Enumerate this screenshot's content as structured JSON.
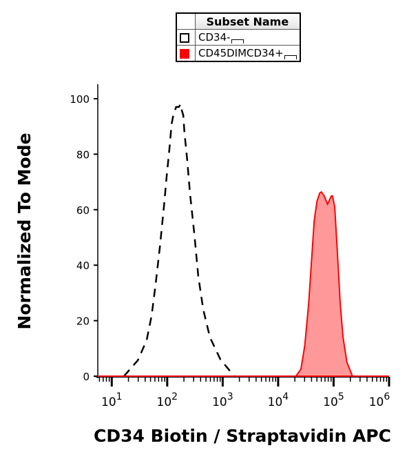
{
  "chart_data": {
    "type": "line",
    "title": "",
    "xlabel": "CD34 Biotin / Straptavidin APC",
    "ylabel": "Normalized To Mode",
    "x_scale": "log",
    "xlim": [
      5.6,
      1000000
    ],
    "ylim": [
      0,
      105
    ],
    "x_tick_labels": [
      {
        "value": 10,
        "base": "10",
        "exp": "1"
      },
      {
        "value": 100,
        "base": "10",
        "exp": "2"
      },
      {
        "value": 1000,
        "base": "10",
        "exp": "3"
      },
      {
        "value": 10000,
        "base": "10",
        "exp": "4"
      },
      {
        "value": 100000,
        "base": "10",
        "exp": "5"
      },
      {
        "value": 1000000,
        "base": "10",
        "exp": "6"
      }
    ],
    "y_ticks": [
      0,
      20,
      40,
      60,
      80,
      100
    ],
    "grid": false,
    "legend": {
      "placement": "top-center",
      "header": "Subset Name",
      "entries": [
        "CD34-",
        "CD45DIMCD34+"
      ]
    },
    "series": [
      {
        "name": "CD34-",
        "color": "#000000",
        "style": "dashed",
        "fill": "none",
        "log10_x": [
          1.22,
          1.47,
          1.63,
          1.72,
          1.79,
          1.87,
          1.94,
          1.99,
          2.04,
          2.08,
          2.11,
          2.16,
          2.21,
          2.24,
          2.26,
          2.29,
          2.31,
          2.36,
          2.41,
          2.49,
          2.56,
          2.65,
          2.77,
          2.96,
          3.21
        ],
        "y": [
          0,
          5.7,
          13,
          22,
          33,
          47,
          61,
          72,
          82,
          91,
          94,
          97,
          97,
          98,
          96,
          94,
          88,
          78,
          66,
          51,
          36,
          24,
          14,
          6,
          0
        ]
      },
      {
        "name": "CD45DIMCD34+",
        "color": "#ff0000",
        "style": "solid",
        "fill": "#ff9999",
        "log10_x": [
          4.32,
          4.41,
          4.48,
          4.55,
          4.6,
          4.65,
          4.7,
          4.75,
          4.78,
          4.83,
          4.89,
          4.96,
          4.98,
          5.02,
          5.07,
          5.12,
          5.17,
          5.24,
          5.34
        ],
        "y": [
          0,
          2.5,
          11,
          26,
          41,
          56,
          63,
          66,
          66.4,
          65,
          62,
          65,
          65,
          61,
          44,
          26,
          14,
          5,
          0
        ]
      }
    ]
  }
}
